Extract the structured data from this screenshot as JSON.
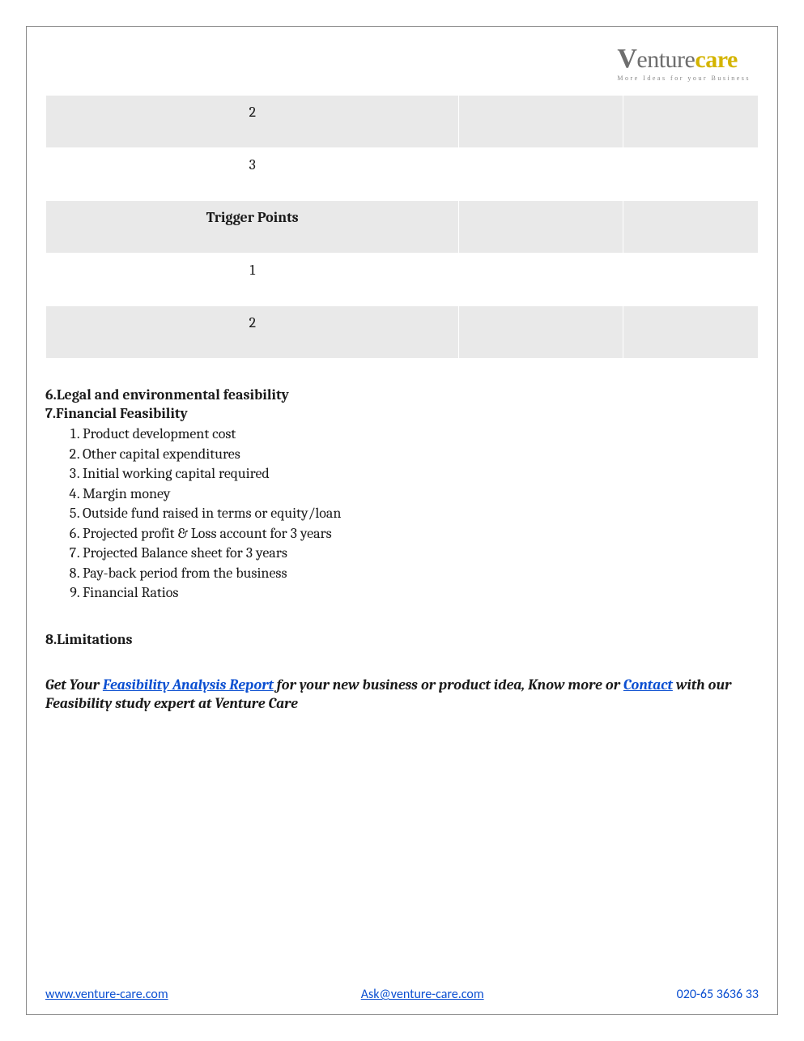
{
  "logo": {
    "brand_v": "V",
    "brand_mid": "enture",
    "brand_end": "care",
    "tagline": "More Ideas for your Business"
  },
  "table": {
    "rows": [
      {
        "shaded": true,
        "c1": "2",
        "c2": "",
        "c3": "",
        "bold": false
      },
      {
        "shaded": false,
        "c1": "3",
        "c2": "",
        "c3": "",
        "bold": false
      },
      {
        "shaded": true,
        "c1": "Trigger Points",
        "c2": "",
        "c3": "",
        "bold": true
      },
      {
        "shaded": false,
        "c1": "1",
        "c2": "",
        "c3": "",
        "bold": false
      },
      {
        "shaded": true,
        "c1": "2",
        "c2": "",
        "c3": "",
        "bold": false
      }
    ]
  },
  "sections": {
    "s6": "6.Legal and environmental feasibility",
    "s7": "7.Financial Feasibility",
    "finlist": [
      "Product development cost",
      "Other capital expenditures",
      "Initial working capital required",
      "Margin money",
      "Outside fund raised in terms or equity/loan",
      "Projected profit & Loss account for 3 years",
      "Projected Balance sheet for 3 years",
      "Pay-back period from the business",
      "Financial Ratios"
    ],
    "s8": "8.Limitations"
  },
  "cta": {
    "pre": "Get Your ",
    "link1": "Feasibility Analysis Report",
    "mid": " for your new business or product idea, Know more or ",
    "link2": "Contact",
    "post": " with our Feasibility study expert at Venture Care"
  },
  "footer": {
    "site": "www.venture-care.com",
    "email": "Ask@venture-care.com",
    "phone": "020-65 3636 33"
  }
}
